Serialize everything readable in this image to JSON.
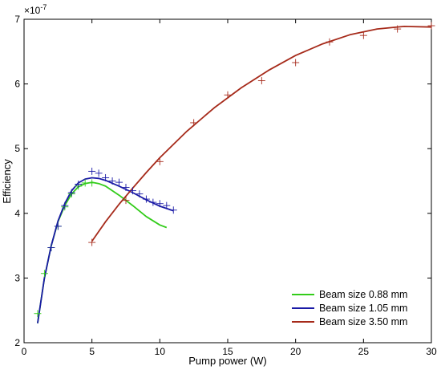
{
  "chart_data": {
    "type": "scatter",
    "xlabel": "Pump power (W)",
    "ylabel": "Efficiency",
    "y_multiplier": "×10",
    "y_multiplier_exp": "-7",
    "xlim": [
      0,
      30
    ],
    "ylim": [
      2,
      7
    ],
    "xticks": [
      0,
      5,
      10,
      15,
      20,
      25,
      30
    ],
    "yticks": [
      2,
      3,
      4,
      5,
      6,
      7
    ],
    "grid": false,
    "legend_position": "bottom-right",
    "series": [
      {
        "name": "Beam size 0.88 mm",
        "color": "#33cc1a",
        "points": {
          "x": [
            1.0,
            1.5,
            2.0,
            2.5,
            3.0,
            3.5,
            4.0,
            4.5,
            5.0
          ],
          "y": [
            2.45,
            3.07,
            3.47,
            3.8,
            4.1,
            4.3,
            4.42,
            4.47,
            4.47
          ]
        },
        "fit": {
          "x": [
            1.0,
            1.5,
            2.0,
            2.5,
            3.0,
            3.5,
            4.0,
            4.5,
            5.0,
            5.5,
            6.0,
            7.0,
            8.0,
            9.0,
            10.0,
            10.5
          ],
          "y": [
            2.3,
            3.0,
            3.5,
            3.87,
            4.12,
            4.3,
            4.41,
            4.46,
            4.48,
            4.46,
            4.42,
            4.28,
            4.12,
            3.95,
            3.82,
            3.78
          ]
        }
      },
      {
        "name": "Beam size 1.05 mm",
        "color": "#1a1aa6",
        "points": {
          "x": [
            2.0,
            2.5,
            3.0,
            3.5,
            4.0,
            5.0,
            5.5,
            6.0,
            6.5,
            7.0,
            7.5,
            8.0,
            8.5,
            9.0,
            9.5,
            10.0,
            10.5,
            11.0
          ],
          "y": [
            3.47,
            3.8,
            4.12,
            4.32,
            4.45,
            4.65,
            4.62,
            4.55,
            4.5,
            4.48,
            4.4,
            4.35,
            4.3,
            4.22,
            4.17,
            4.15,
            4.12,
            4.05
          ]
        },
        "fit": {
          "x": [
            1.0,
            1.5,
            2.0,
            2.5,
            3.0,
            3.5,
            4.0,
            4.5,
            5.0,
            5.5,
            6.0,
            7.0,
            8.0,
            9.0,
            10.0,
            11.0
          ],
          "y": [
            2.3,
            3.0,
            3.5,
            3.88,
            4.15,
            4.35,
            4.47,
            4.53,
            4.55,
            4.54,
            4.51,
            4.42,
            4.32,
            4.21,
            4.11,
            4.04
          ]
        }
      },
      {
        "name": "Beam size 3.50 mm",
        "color": "#a62a1a",
        "points": {
          "x": [
            5.0,
            7.5,
            10.0,
            12.5,
            15.0,
            17.5,
            20.0,
            22.5,
            25.0,
            27.5,
            30.0
          ],
          "y": [
            3.55,
            4.2,
            4.8,
            5.4,
            5.83,
            6.05,
            6.33,
            6.65,
            6.75,
            6.85,
            6.9
          ]
        },
        "fit": {
          "x": [
            5.0,
            6.0,
            7.0,
            8.0,
            9.0,
            10.0,
            12.0,
            14.0,
            16.0,
            18.0,
            20.0,
            22.0,
            24.0,
            26.0,
            28.0,
            30.0
          ],
          "y": [
            3.57,
            3.87,
            4.14,
            4.39,
            4.63,
            4.86,
            5.27,
            5.63,
            5.94,
            6.21,
            6.44,
            6.62,
            6.76,
            6.85,
            6.89,
            6.88
          ]
        }
      }
    ]
  }
}
